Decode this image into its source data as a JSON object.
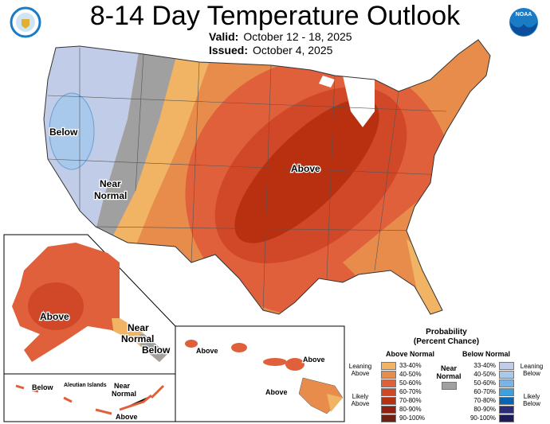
{
  "header": {
    "title": "8-14 Day Temperature Outlook",
    "valid_label": "Valid:",
    "valid_value": "October 12 - 18, 2025",
    "issued_label": "Issued:",
    "issued_value": "October 4, 2025"
  },
  "logos": {
    "left": "Department of Commerce seal",
    "right": "NOAA"
  },
  "map_labels": {
    "below": "Below",
    "near": "Near",
    "normal": "Normal",
    "above": "Above",
    "ak_above": "Above",
    "ak_near": "Near",
    "ak_normal": "Normal",
    "ak_below": "Below",
    "aleutian": "Aleutian Islands",
    "al_below": "Below",
    "al_near": "Near",
    "al_normal": "Normal",
    "al_above": "Above",
    "hi_above1": "Above",
    "hi_above2": "Above",
    "hi_above3": "Above"
  },
  "legend": {
    "title1": "Probability",
    "title2": "(Percent Chance)",
    "above_header": "Above Normal",
    "below_header": "Below Normal",
    "near_label1": "Near",
    "near_label2": "Normal",
    "near_color": "#a0a0a0",
    "leaning_above": [
      "Leaning",
      "Above"
    ],
    "likely_above": [
      "Likely",
      "Above"
    ],
    "leaning_below": [
      "Leaning",
      "Below"
    ],
    "likely_below": [
      "Likely",
      "Below"
    ],
    "above": [
      {
        "range": "33-40%",
        "color": "#f0b464"
      },
      {
        "range": "40-50%",
        "color": "#e88c4c"
      },
      {
        "range": "50-60%",
        "color": "#e0603c"
      },
      {
        "range": "60-70%",
        "color": "#d04828"
      },
      {
        "range": "70-80%",
        "color": "#b83010"
      },
      {
        "range": "80-90%",
        "color": "#902010"
      },
      {
        "range": "90-100%",
        "color": "#702010"
      }
    ],
    "below": [
      {
        "range": "33-40%",
        "color": "#c0cce8"
      },
      {
        "range": "40-50%",
        "color": "#a8c8ec"
      },
      {
        "range": "50-60%",
        "color": "#78b4e8"
      },
      {
        "range": "60-70%",
        "color": "#3ca0dc"
      },
      {
        "range": "70-80%",
        "color": "#0864b4"
      },
      {
        "range": "80-90%",
        "color": "#2c2c7c"
      },
      {
        "range": "90-100%",
        "color": "#1c1c5c"
      }
    ]
  }
}
